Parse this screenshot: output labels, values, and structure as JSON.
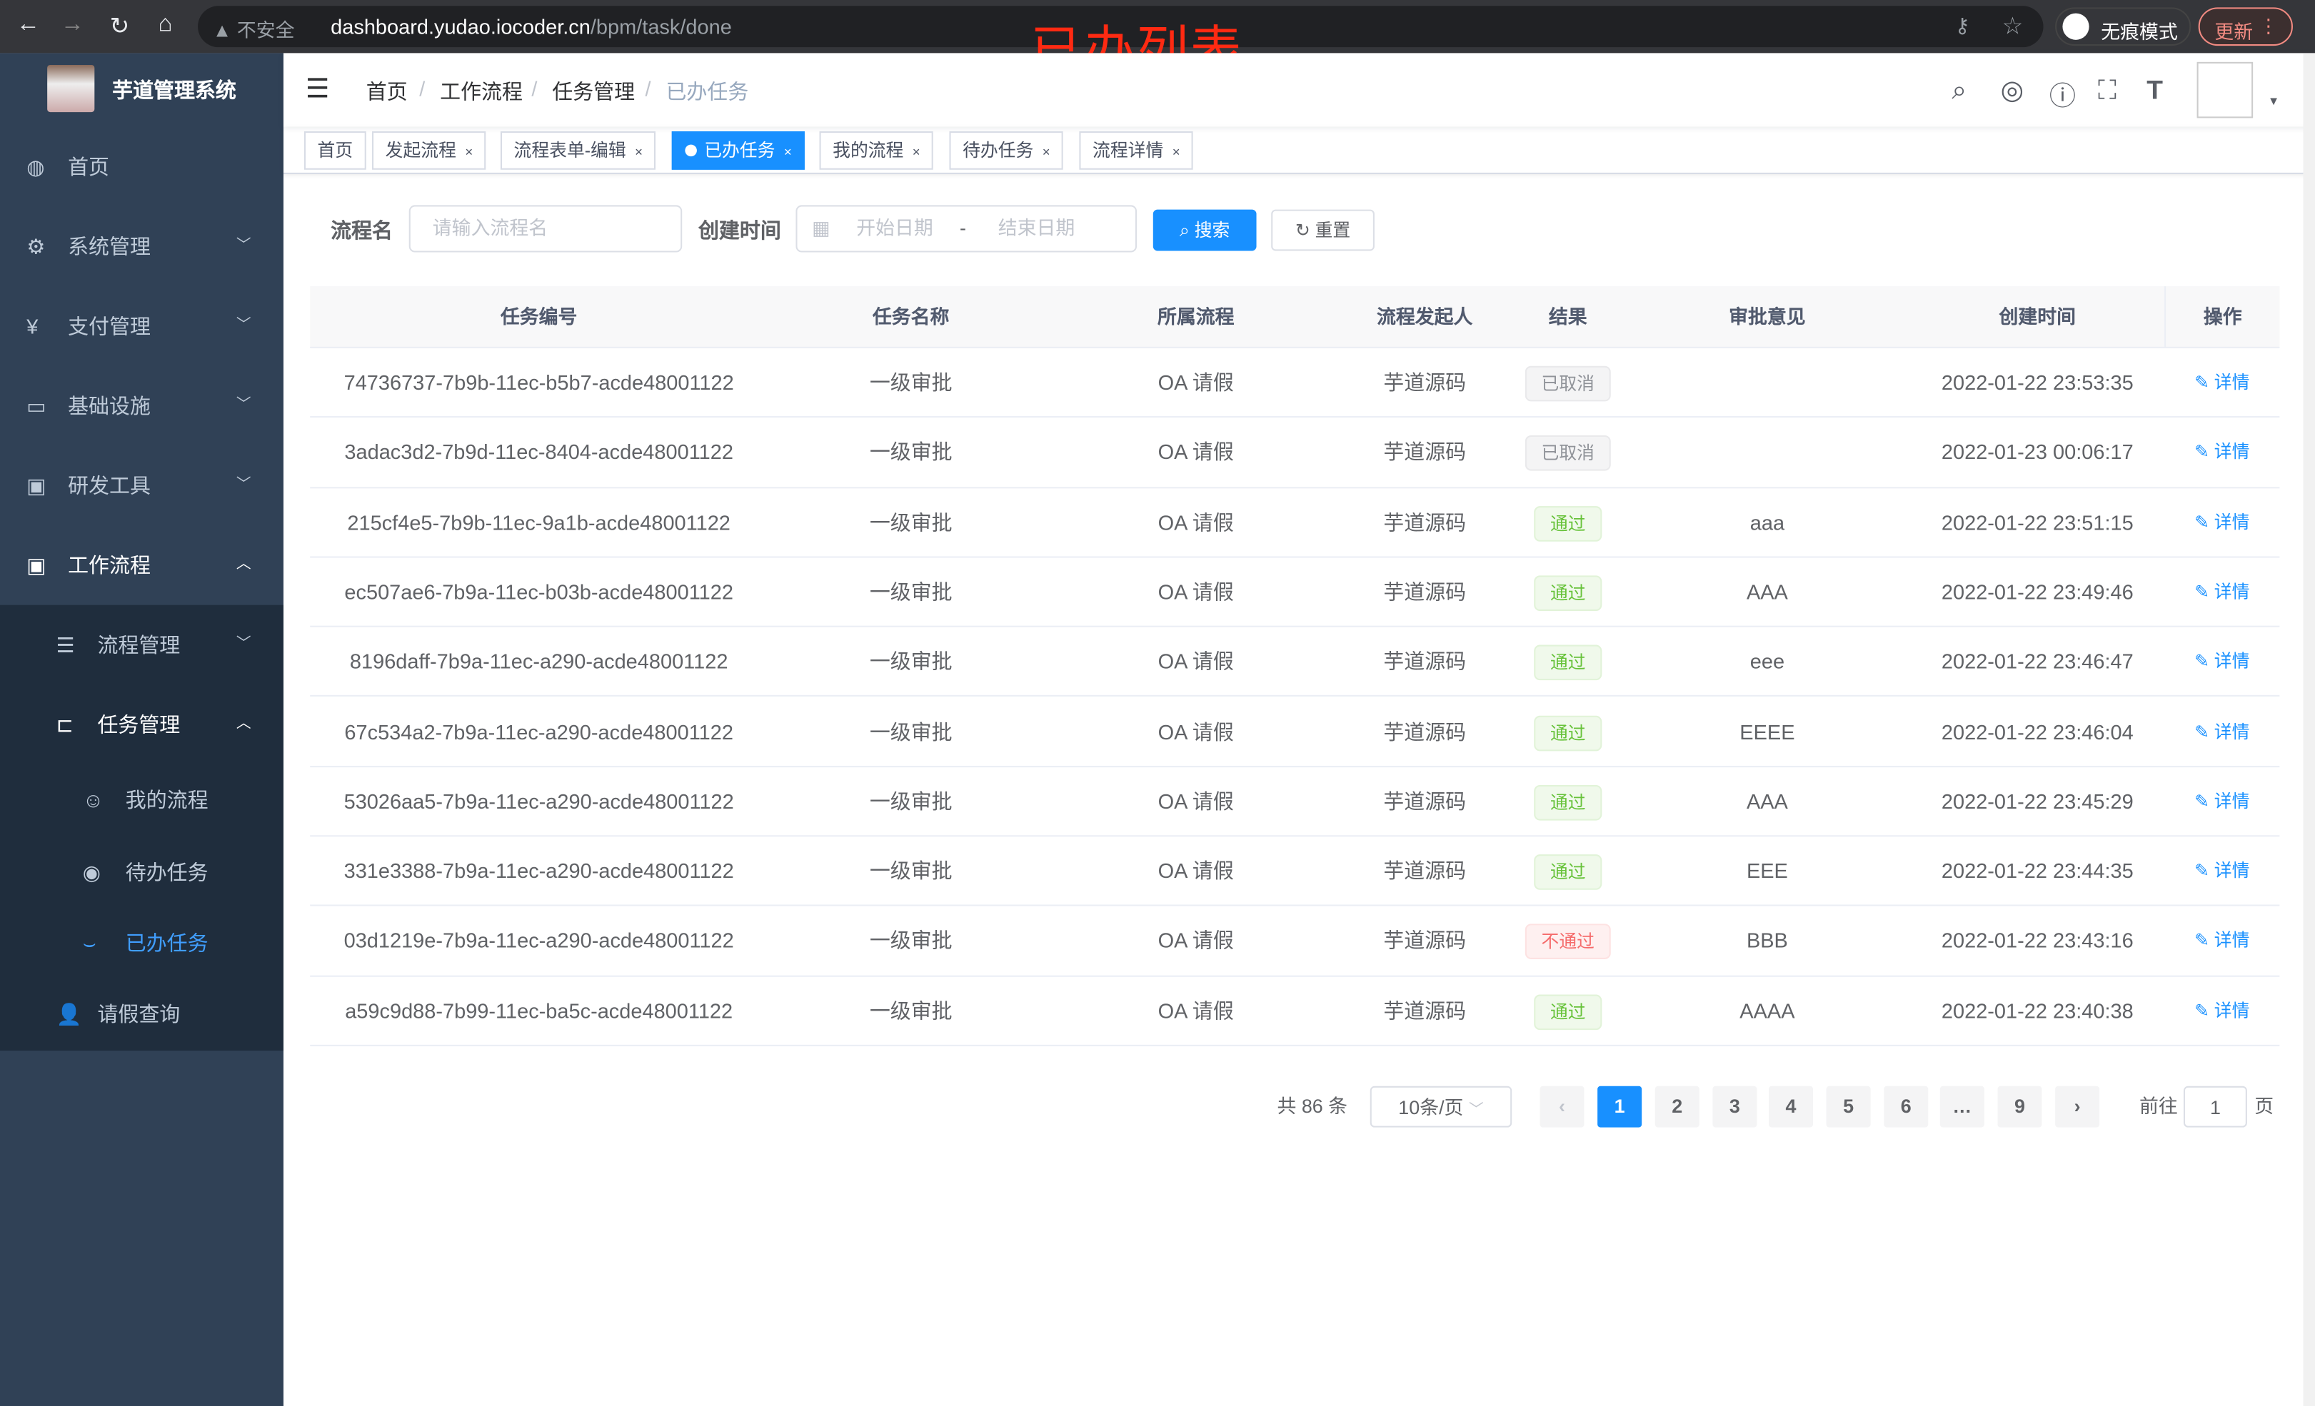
{
  "browser": {
    "security": "不安全",
    "url_host": "dashboard.yudao.iocoder.cn",
    "url_path": "/bpm/task/done",
    "incognito": "无痕模式",
    "update": "更新"
  },
  "overlay_title": "已办列表",
  "sidebar": {
    "title": "芋道管理系统",
    "items": [
      {
        "label": "首页",
        "icon": "dashboard-icon"
      },
      {
        "label": "系统管理",
        "icon": "gear-icon"
      },
      {
        "label": "支付管理",
        "icon": "yen-icon"
      },
      {
        "label": "基础设施",
        "icon": "monitor-icon"
      },
      {
        "label": "研发工具",
        "icon": "toolbox-icon"
      },
      {
        "label": "工作流程",
        "icon": "toolbox-icon"
      },
      {
        "label": "流程管理",
        "icon": "list-icon"
      },
      {
        "label": "任务管理",
        "icon": "tree-icon"
      },
      {
        "label": "我的流程",
        "icon": "chat-icon"
      },
      {
        "label": "待办任务",
        "icon": "eye-icon"
      },
      {
        "label": "已办任务",
        "icon": "done-icon",
        "active": true
      },
      {
        "label": "请假查询",
        "icon": "user-icon"
      }
    ]
  },
  "breadcrumb": [
    "首页",
    "工作流程",
    "任务管理",
    "已办任务"
  ],
  "tags": [
    "首页",
    "发起流程",
    "流程表单-编辑",
    "已办任务",
    "我的流程",
    "待办任务",
    "流程详情"
  ],
  "filters": {
    "name_label": "流程名",
    "name_placeholder": "请输入流程名",
    "time_label": "创建时间",
    "start_placeholder": "开始日期",
    "range_sep": "-",
    "end_placeholder": "结束日期",
    "search": "搜索",
    "reset": "重置"
  },
  "table": {
    "columns": [
      "任务编号",
      "任务名称",
      "所属流程",
      "流程发起人",
      "结果",
      "审批意见",
      "创建时间",
      "操作"
    ],
    "rows": [
      [
        "74736737-7b9b-11ec-b5b7-acde48001122",
        "一级审批",
        "OA 请假",
        "芋道源码",
        "已取消",
        "",
        "2022-01-22 23:53:35",
        "详情"
      ],
      [
        "3adac3d2-7b9d-11ec-8404-acde48001122",
        "一级审批",
        "OA 请假",
        "芋道源码",
        "已取消",
        "",
        "2022-01-23 00:06:17",
        "详情"
      ],
      [
        "215cf4e5-7b9b-11ec-9a1b-acde48001122",
        "一级审批",
        "OA 请假",
        "芋道源码",
        "通过",
        "aaa",
        "2022-01-22 23:51:15",
        "详情"
      ],
      [
        "ec507ae6-7b9a-11ec-b03b-acde48001122",
        "一级审批",
        "OA 请假",
        "芋道源码",
        "通过",
        "AAA",
        "2022-01-22 23:49:46",
        "详情"
      ],
      [
        "8196daff-7b9a-11ec-a290-acde48001122",
        "一级审批",
        "OA 请假",
        "芋道源码",
        "通过",
        "eee",
        "2022-01-22 23:46:47",
        "详情"
      ],
      [
        "67c534a2-7b9a-11ec-a290-acde48001122",
        "一级审批",
        "OA 请假",
        "芋道源码",
        "通过",
        "EEEE",
        "2022-01-22 23:46:04",
        "详情"
      ],
      [
        "53026aa5-7b9a-11ec-a290-acde48001122",
        "一级审批",
        "OA 请假",
        "芋道源码",
        "通过",
        "AAA",
        "2022-01-22 23:45:29",
        "详情"
      ],
      [
        "331e3388-7b9a-11ec-a290-acde48001122",
        "一级审批",
        "OA 请假",
        "芋道源码",
        "通过",
        "EEE",
        "2022-01-22 23:44:35",
        "详情"
      ],
      [
        "03d1219e-7b9a-11ec-a290-acde48001122",
        "一级审批",
        "OA 请假",
        "芋道源码",
        "不通过",
        "BBB",
        "2022-01-22 23:43:16",
        "详情"
      ],
      [
        "a59c9d88-7b99-11ec-ba5c-acde48001122",
        "一级审批",
        "OA 请假",
        "芋道源码",
        "通过",
        "AAAA",
        "2022-01-22 23:40:38",
        "详情"
      ]
    ]
  },
  "pagination": {
    "total": "共 86 条",
    "page_size": "10条/页",
    "pages": [
      "1",
      "2",
      "3",
      "4",
      "5",
      "6",
      "…",
      "9"
    ],
    "current": "1",
    "goto_label": "前往",
    "goto_value": "1",
    "goto_suffix": "页"
  },
  "colors": {
    "primary": "#1890ff",
    "sidebar": "#304156",
    "sidebar_sub": "#1f2d3d",
    "pass": "#67c23a",
    "fail": "#f56c6c"
  }
}
